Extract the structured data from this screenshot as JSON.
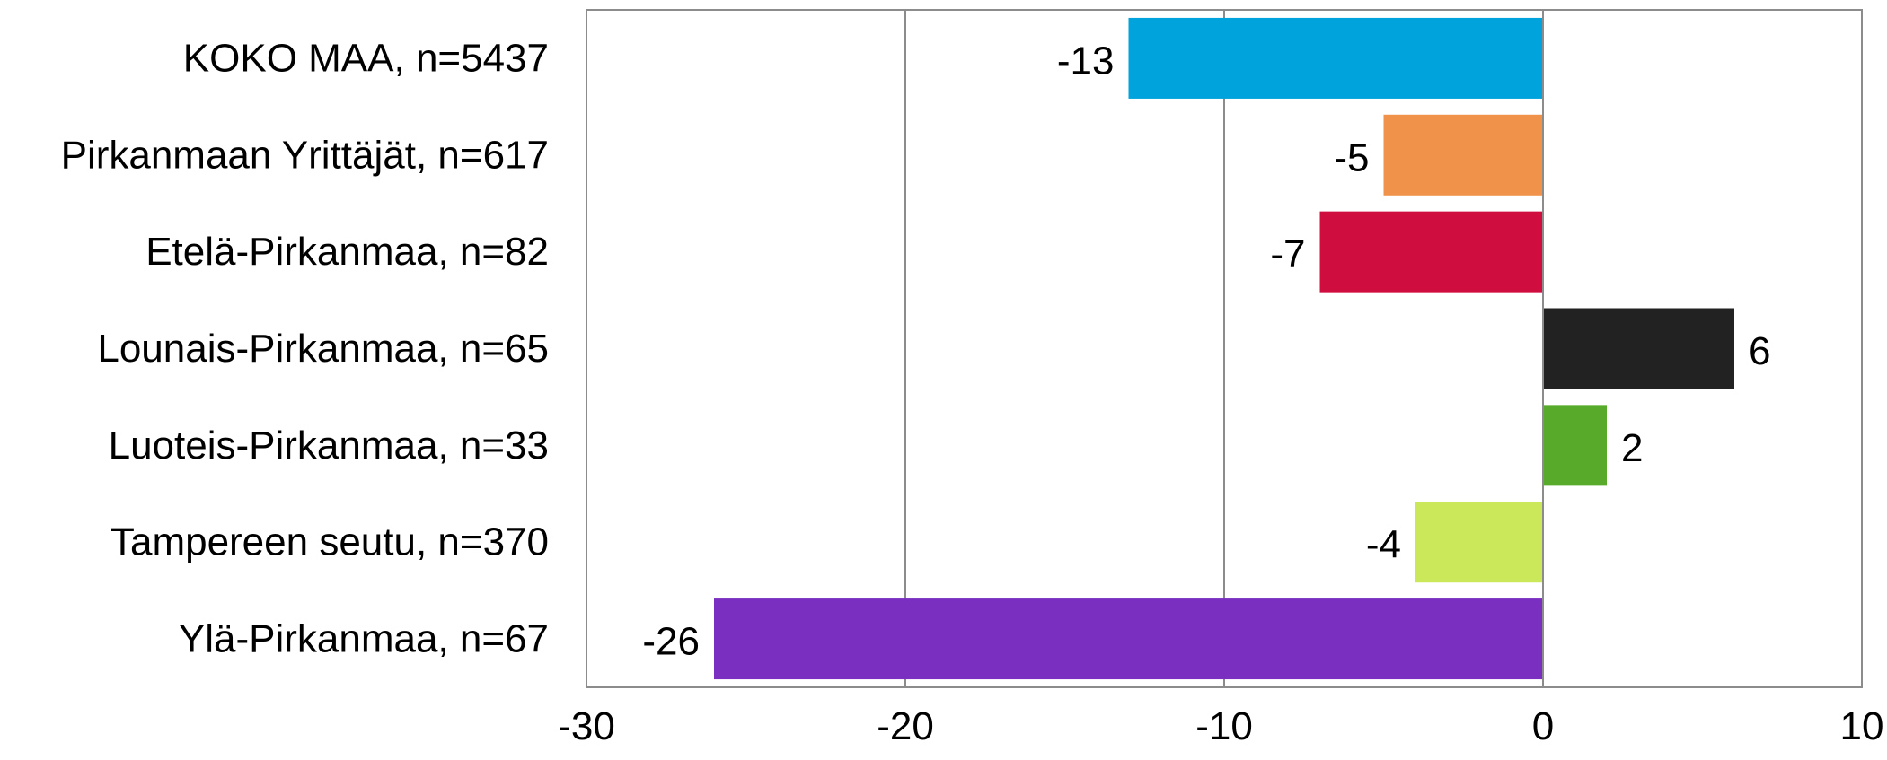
{
  "chart_data": {
    "type": "bar",
    "orientation": "horizontal",
    "categories": [
      "KOKO MAA, n=5437",
      "Pirkanmaan Yrittäjät, n=617",
      "Etelä-Pirkanmaa, n=82",
      "Lounais-Pirkanmaa, n=65",
      "Luoteis-Pirkanmaa, n=33",
      "Tampereen seutu, n=370",
      "Ylä-Pirkanmaa, n=67"
    ],
    "values": [
      -13,
      -5,
      -7,
      6,
      2,
      -4,
      -26
    ],
    "value_labels": [
      "-13",
      "-5",
      "-7",
      "6",
      "2",
      "-4",
      "-26"
    ],
    "colors": [
      "#00A3DC",
      "#F0924A",
      "#CF0D3E",
      "#222222",
      "#58AB2A",
      "#CBE75A",
      "#7A2FC1"
    ],
    "xlim": [
      -30,
      10
    ],
    "xticks": [
      -30,
      -20,
      -10,
      0,
      10
    ],
    "xtick_labels": [
      "-30",
      "-20",
      "-10",
      "0",
      "10"
    ],
    "grid": "vertical",
    "legend": "none",
    "title": "",
    "xlabel": "",
    "ylabel": ""
  }
}
